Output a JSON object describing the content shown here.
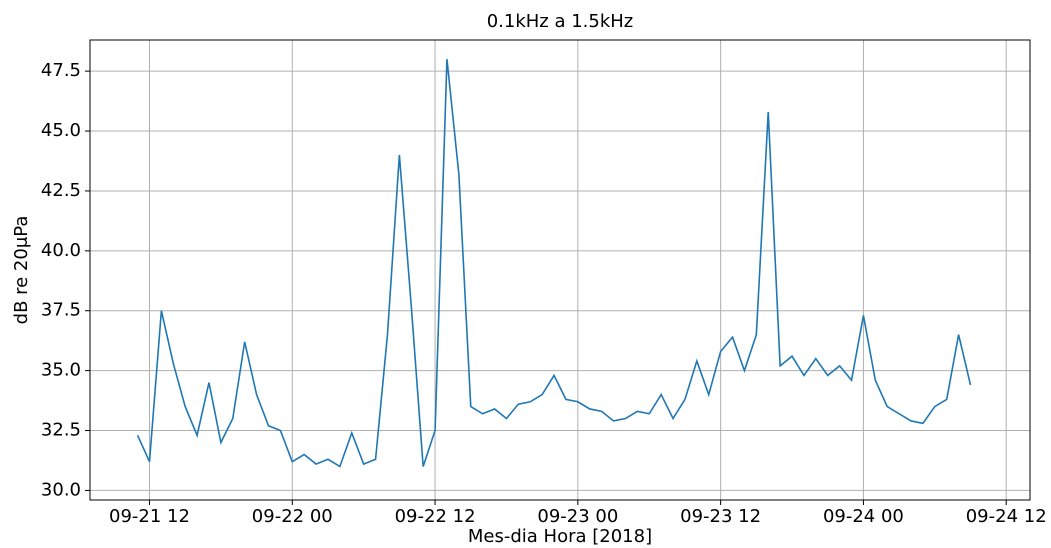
{
  "chart_data": {
    "type": "line",
    "title": "0.1kHz a 1.5kHz",
    "x_label": "Mes-dia Hora [2018]",
    "y_label": "dB re 20μPa",
    "x": [
      "09-21 11",
      "09-21 12",
      "09-21 13",
      "09-21 14",
      "09-21 15",
      "09-21 16",
      "09-21 17",
      "09-21 18",
      "09-21 19",
      "09-21 20",
      "09-21 21",
      "09-21 22",
      "09-21 23",
      "09-22 00",
      "09-22 01",
      "09-22 02",
      "09-22 03",
      "09-22 04",
      "09-22 05",
      "09-22 06",
      "09-22 07",
      "09-22 08",
      "09-22 09",
      "09-22 10",
      "09-22 11",
      "09-22 12",
      "09-22 13",
      "09-22 14",
      "09-22 15",
      "09-22 16",
      "09-22 17",
      "09-22 18",
      "09-22 19",
      "09-22 20",
      "09-22 21",
      "09-22 22",
      "09-22 23",
      "09-23 00",
      "09-23 01",
      "09-23 02",
      "09-23 03",
      "09-23 04",
      "09-23 05",
      "09-23 06",
      "09-23 07",
      "09-23 08",
      "09-23 09",
      "09-23 10",
      "09-23 11",
      "09-23 12",
      "09-23 13",
      "09-23 14",
      "09-23 15",
      "09-23 16",
      "09-23 17",
      "09-23 18",
      "09-23 19",
      "09-23 20",
      "09-23 21",
      "09-23 22",
      "09-23 23",
      "09-24 00",
      "09-24 01",
      "09-24 02",
      "09-24 03",
      "09-24 04",
      "09-24 05",
      "09-24 06",
      "09-24 07",
      "09-24 08",
      "09-24 09"
    ],
    "values": [
      32.3,
      31.2,
      37.5,
      35.3,
      33.5,
      32.3,
      34.5,
      32.0,
      33.0,
      36.2,
      34.0,
      32.7,
      32.5,
      31.2,
      31.5,
      31.1,
      31.3,
      31.0,
      32.4,
      31.1,
      31.3,
      36.5,
      44.0,
      37.7,
      31.0,
      32.5,
      48.0,
      43.2,
      33.5,
      33.2,
      33.4,
      33.0,
      33.6,
      33.7,
      34.0,
      34.8,
      33.8,
      33.7,
      33.4,
      33.3,
      32.9,
      33.0,
      33.3,
      33.2,
      34.0,
      33.0,
      33.8,
      35.4,
      34.0,
      35.8,
      36.4,
      35.0,
      36.5,
      45.8,
      35.2,
      35.6,
      34.8,
      35.5,
      34.8,
      35.2,
      34.6,
      37.3,
      34.6,
      33.5,
      33.2,
      32.9,
      32.8,
      33.5,
      33.8,
      36.5,
      34.4
    ],
    "color": "#1f77b4",
    "xlim": [
      "09-21 07",
      "09-24 14"
    ],
    "xticks": [
      "09-21 12",
      "09-22 00",
      "09-22 12",
      "09-23 00",
      "09-23 12",
      "09-24 00",
      "09-24 12"
    ],
    "ylim": [
      29.6,
      48.8
    ],
    "yticks": [
      {
        "value": 30,
        "label": "30.0"
      },
      32.5,
      {
        "value": 35,
        "label": "35.0"
      },
      37.5,
      {
        "value": 40,
        "label": "40.0"
      },
      42.5,
      {
        "value": 45,
        "label": "45.0"
      },
      47.5
    ],
    "grid": true
  }
}
